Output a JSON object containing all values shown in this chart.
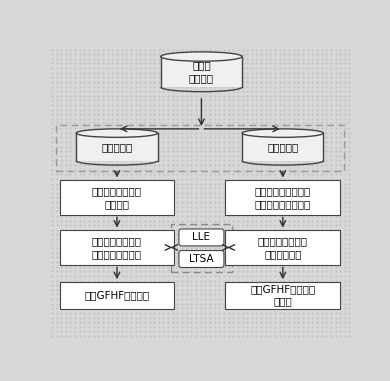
{
  "bg_color": "#e8e8e8",
  "bg_dotted": true,
  "top_db_text": "高光谱\n遥感图像",
  "train_db_text": "训练数据集",
  "test_db_text": "测试数据集",
  "box1_text": "基于光谱角制图选\n择近邻点",
  "box2_text": "在训练数据中基于光\n谱角制图选择近邻点",
  "box3_text": "基于局部流形学习\n算法计算邻接矩阵",
  "box4_text": "基于局部流形学习\n算法计算权值",
  "box5_text": "基于GFHF算法分类",
  "box6_text": "基于GFHF的泛化算\n法分类",
  "lle_text": "LLE",
  "ltsa_text": "LTSA",
  "box_fill": "#ffffff",
  "box_edge": "#444444",
  "dash_edge": "#888888",
  "arrow_color": "#333333",
  "font_size": 7.5,
  "font_family": "DejaVu Sans"
}
